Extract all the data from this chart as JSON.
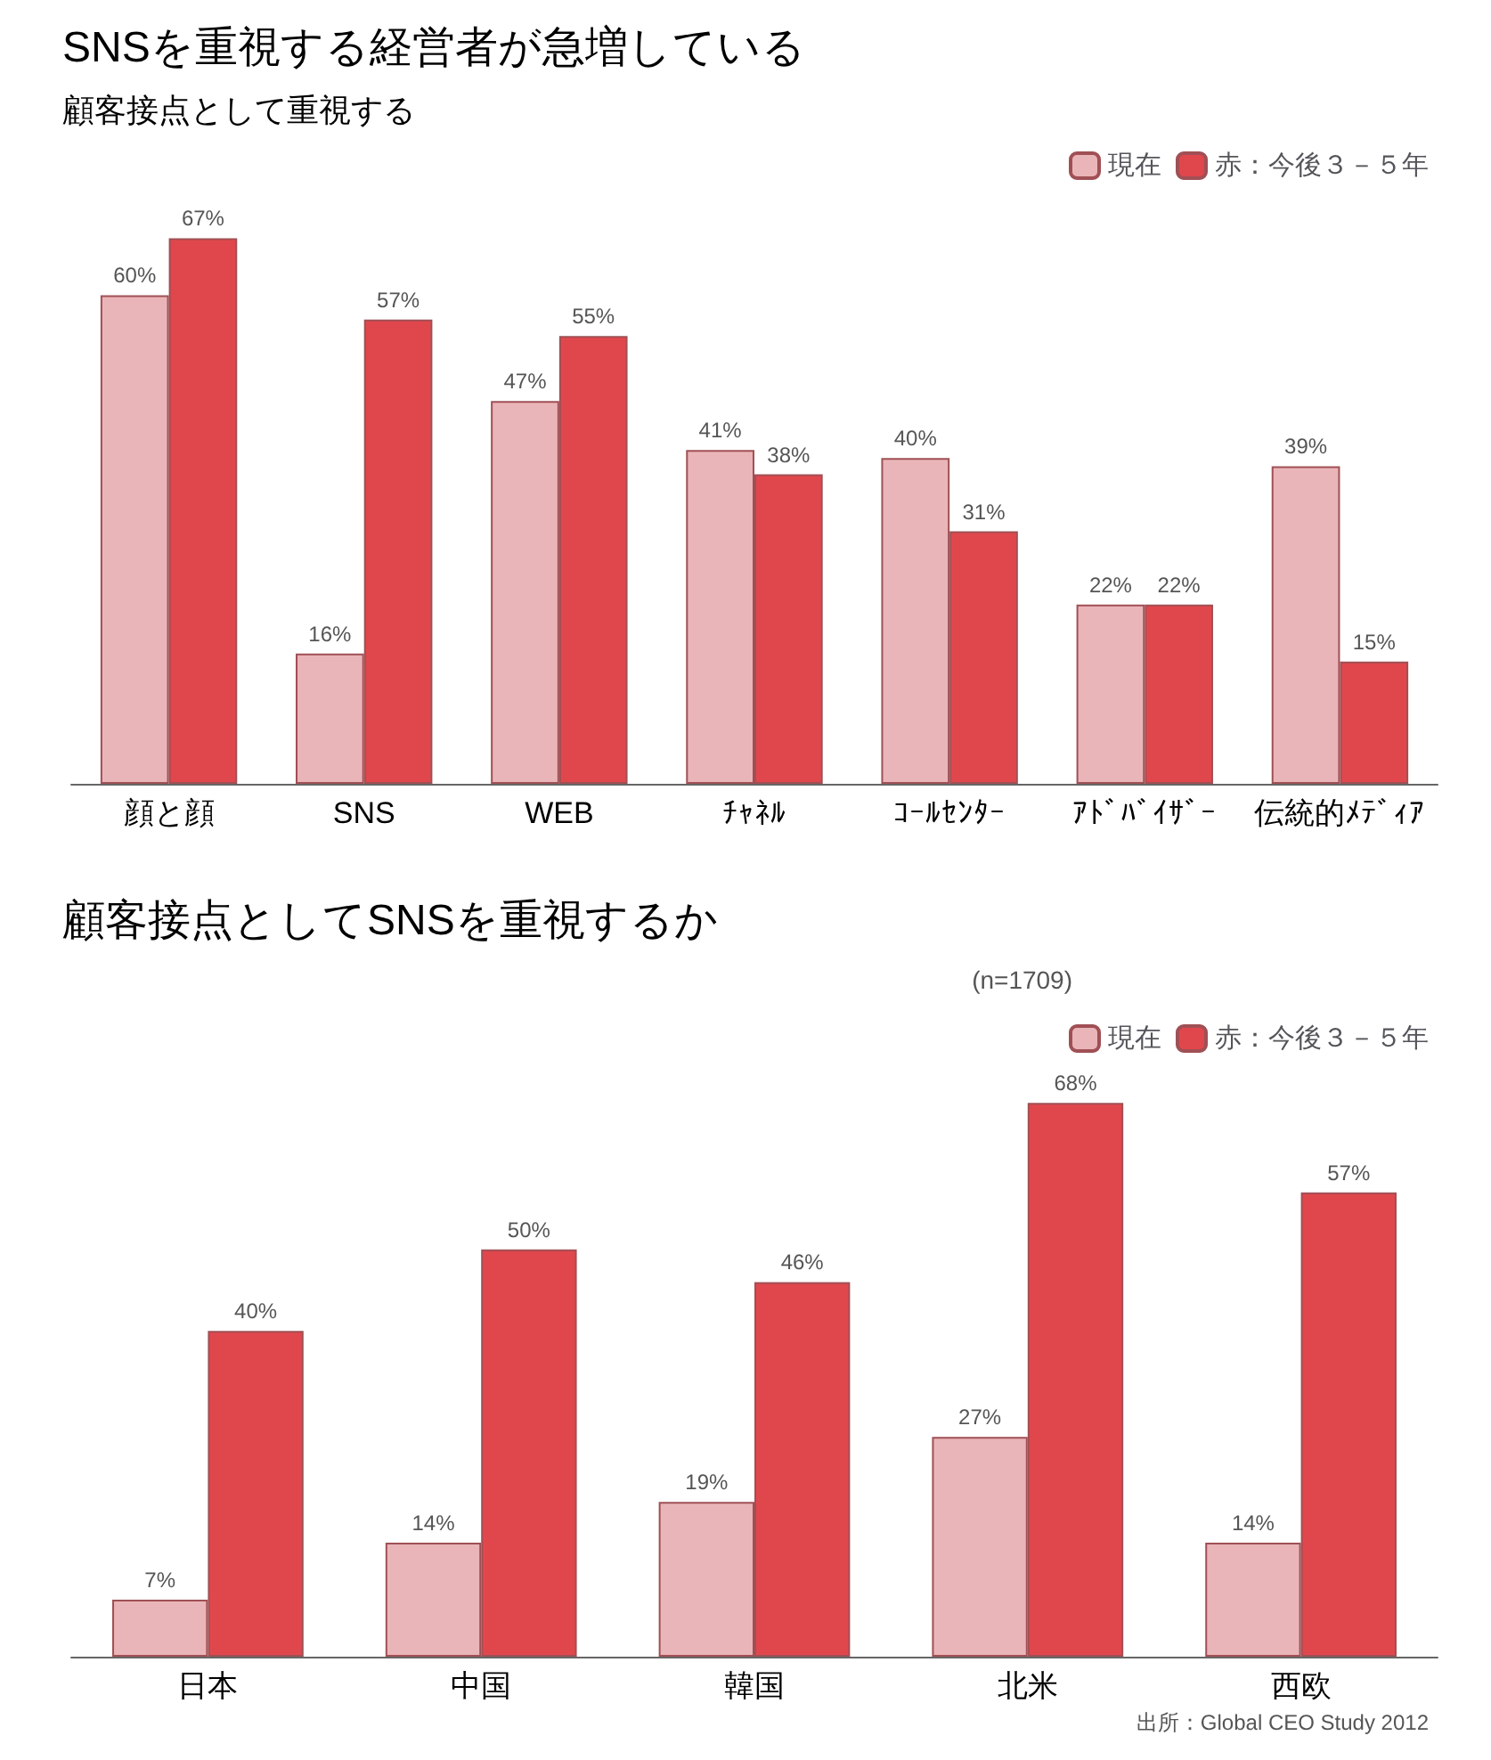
{
  "chart_data": [
    {
      "type": "bar",
      "title": "SNSを重視する経営者が急増している",
      "subtitle": "顧客接点として重視する",
      "categories": [
        "顔と顔",
        "SNS",
        "WEB",
        "ﾁｬﾈﾙ",
        "ｺｰﾙｾﾝﾀｰ",
        "ｱﾄﾞﾊﾞｲｻﾞｰ",
        "伝統的ﾒﾃﾞｨｱ"
      ],
      "series": [
        {
          "name": "現在",
          "color": "#eab5b8",
          "values": [
            60,
            16,
            47,
            41,
            40,
            22,
            39
          ],
          "value_labels": [
            "60%",
            "16%",
            "47%",
            "41%",
            "40%",
            "22%",
            "39%"
          ]
        },
        {
          "name": "赤：今後３－５年",
          "color": "#e0474c",
          "values": [
            67,
            57,
            55,
            38,
            31,
            22,
            15
          ],
          "value_labels": [
            "67%",
            "57%",
            "55%",
            "38%",
            "31%",
            "22%",
            "15%"
          ]
        }
      ],
      "legend": "top right"
    },
    {
      "type": "bar",
      "title": "顧客接点としてSNSを重視するか",
      "categories": [
        "日本",
        "中国",
        "韓国",
        "北米",
        "西欧"
      ],
      "series": [
        {
          "name": "現在",
          "color": "#eab5b8",
          "values": [
            7,
            14,
            19,
            27,
            14
          ],
          "value_labels": [
            "7%",
            "14%",
            "19%",
            "27%",
            "14%"
          ]
        },
        {
          "name": "赤：今後３－５年",
          "color": "#e0474c",
          "values": [
            40,
            50,
            46,
            68,
            57
          ],
          "value_labels": [
            "40%",
            "50%",
            "46%",
            "68%",
            "57%"
          ]
        }
      ],
      "annotations": [
        "(n=1709)",
        "出所：Global CEO Study 2012"
      ],
      "legend": "top right"
    }
  ]
}
